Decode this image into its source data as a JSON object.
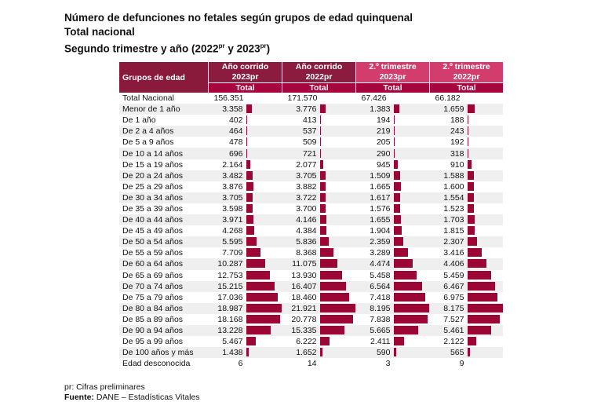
{
  "title": {
    "line1": "Número de defunciones no fetales según grupos de edad quinquenal",
    "line2": "Total nacional",
    "line3_a": "Segundo trimestre y año (2022",
    "line3_sup1": "pr",
    "line3_b": " y 2023",
    "line3_sup2": "pr",
    "line3_c": ")"
  },
  "table": {
    "label_header": "Grupos de edad",
    "columns": [
      {
        "line1": "Año corrido",
        "line2": "2023pr",
        "sub": "Total"
      },
      {
        "line1": "Año corrido",
        "line2": "2022pr",
        "sub": "Total"
      },
      {
        "line1": "2.º trimestre",
        "line2": "2023pr",
        "sub": "Total"
      },
      {
        "line1": "2.º trimestre",
        "line2": "2022pr",
        "sub": "Total"
      }
    ],
    "rows": [
      {
        "label": "Total Nacional",
        "values": [
          "156.351",
          "171.570",
          "67.426",
          "66.182"
        ],
        "bar": false
      },
      {
        "label": "Menor de 1 año",
        "values": [
          "3.358",
          "3.776",
          "1.383",
          "1.659"
        ]
      },
      {
        "label": "De 1 año",
        "values": [
          "402",
          "413",
          "194",
          "188"
        ]
      },
      {
        "label": "De 2 a 4 años",
        "values": [
          "464",
          "537",
          "219",
          "243"
        ]
      },
      {
        "label": "De 5 a 9 años",
        "values": [
          "478",
          "509",
          "205",
          "192"
        ]
      },
      {
        "label": "De 10 a 14 años",
        "values": [
          "696",
          "721",
          "290",
          "318"
        ]
      },
      {
        "label": "De 15 a 19 años",
        "values": [
          "2.164",
          "2.077",
          "945",
          "910"
        ]
      },
      {
        "label": "De 20 a 24 años",
        "values": [
          "3.482",
          "3.705",
          "1.509",
          "1.588"
        ]
      },
      {
        "label": "De 25 a 29 años",
        "values": [
          "3.876",
          "3.882",
          "1.665",
          "1.600"
        ]
      },
      {
        "label": "De 30 a 34 años",
        "values": [
          "3.705",
          "3.722",
          "1.617",
          "1.554"
        ]
      },
      {
        "label": "De 35 a 39 años",
        "values": [
          "3.598",
          "3.700",
          "1.576",
          "1.523"
        ]
      },
      {
        "label": "De 40 a 44 años",
        "values": [
          "3.971",
          "4.146",
          "1.655",
          "1.703"
        ]
      },
      {
        "label": "De 45 a 49 años",
        "values": [
          "4.268",
          "4.384",
          "1.904",
          "1.815"
        ]
      },
      {
        "label": "De 50 a 54 años",
        "values": [
          "5.595",
          "5.836",
          "2.359",
          "2.307"
        ]
      },
      {
        "label": "De 55 a 59 años",
        "values": [
          "7.709",
          "8.368",
          "3.289",
          "3.416"
        ]
      },
      {
        "label": "De 60 a 64 años",
        "values": [
          "10.287",
          "11.075",
          "4.474",
          "4.406"
        ]
      },
      {
        "label": "De 65 a 69 años",
        "values": [
          "12.753",
          "13.930",
          "5.458",
          "5.459"
        ]
      },
      {
        "label": "De 70 a 74 años",
        "values": [
          "15.215",
          "16.407",
          "6.564",
          "6.467"
        ]
      },
      {
        "label": "De 75 a 79 años",
        "values": [
          "17.036",
          "18.460",
          "7.418",
          "6.975"
        ]
      },
      {
        "label": "De 80 a 84 años",
        "values": [
          "18.987",
          "21.921",
          "8.195",
          "8.175"
        ]
      },
      {
        "label": "De 85 a 89 años",
        "values": [
          "18.168",
          "20.778",
          "7.838",
          "7.527"
        ]
      },
      {
        "label": "De 90 a 94 años",
        "values": [
          "13.228",
          "15.335",
          "5.665",
          "5.461"
        ]
      },
      {
        "label": "De 95 a 99 años",
        "values": [
          "5.467",
          "6.222",
          "2.411",
          "2.122"
        ]
      },
      {
        "label": "De 100 años y más",
        "values": [
          "1.438",
          "1.652",
          "590",
          "565"
        ]
      },
      {
        "label": "Edad desconocida",
        "values": [
          "6",
          "14",
          "3",
          "9"
        ],
        "bar": false
      }
    ]
  },
  "colors": {
    "header_dark": "#8b1b3f",
    "header_pink": "#d23d6e",
    "total_row": "#a6063d",
    "bar": "#9c0634"
  },
  "footnotes": {
    "pr_note": "pr: Cifras preliminares",
    "source_label": "Fuente:",
    "source_text": " DANE – Estadísticas Vitales"
  }
}
